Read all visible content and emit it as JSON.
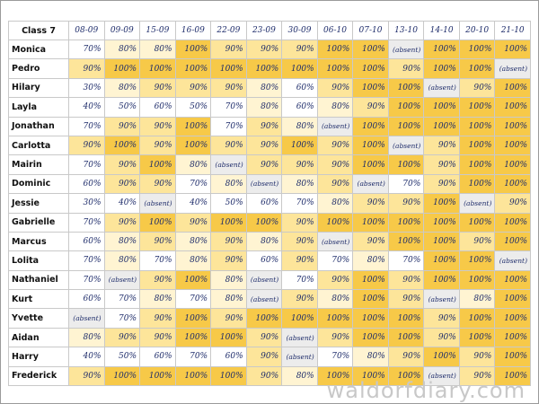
{
  "table": {
    "header": [
      "Class 7",
      "08-09",
      "09-09",
      "15-09",
      "16-09",
      "22-09",
      "23-09",
      "30-09",
      "06-10",
      "07-10",
      "13-10",
      "14-10",
      "20-10",
      "21-10"
    ],
    "rows": [
      [
        "Monica",
        "70%",
        "80%",
        "80%",
        "100%",
        "90%",
        "90%",
        "90%",
        "100%",
        "100%",
        "(absent)",
        "100%",
        "100%",
        "100%"
      ],
      [
        "Pedro",
        "90%",
        "100%",
        "100%",
        "100%",
        "100%",
        "100%",
        "100%",
        "100%",
        "100%",
        "90%",
        "100%",
        "100%",
        "(absent)"
      ],
      [
        "Hilary",
        "30%",
        "80%",
        "90%",
        "90%",
        "90%",
        "80%",
        "60%",
        "90%",
        "100%",
        "100%",
        "(absent)",
        "90%",
        "100%"
      ],
      [
        "Layla",
        "40%",
        "50%",
        "60%",
        "50%",
        "70%",
        "80%",
        "60%",
        "80%",
        "90%",
        "100%",
        "100%",
        "100%",
        "100%"
      ],
      [
        "Jonathan",
        "70%",
        "90%",
        "90%",
        "100%",
        "70%",
        "90%",
        "80%",
        "(absent)",
        "100%",
        "100%",
        "100%",
        "100%",
        "100%"
      ],
      [
        "Carlotta",
        "90%",
        "100%",
        "90%",
        "100%",
        "90%",
        "90%",
        "100%",
        "90%",
        "100%",
        "(absent)",
        "90%",
        "100%",
        "100%"
      ],
      [
        "Mairin",
        "70%",
        "90%",
        "100%",
        "80%",
        "(absent)",
        "90%",
        "90%",
        "90%",
        "100%",
        "100%",
        "90%",
        "100%",
        "100%"
      ],
      [
        "Dominic",
        "60%",
        "90%",
        "90%",
        "70%",
        "80%",
        "(absent)",
        "80%",
        "90%",
        "(absent)",
        "70%",
        "90%",
        "100%",
        "100%"
      ],
      [
        "Jessie",
        "30%",
        "40%",
        "(absent)",
        "40%",
        "50%",
        "60%",
        "70%",
        "80%",
        "90%",
        "90%",
        "100%",
        "(absent)",
        "90%"
      ],
      [
        "Gabrielle",
        "70%",
        "90%",
        "100%",
        "90%",
        "100%",
        "100%",
        "90%",
        "100%",
        "100%",
        "100%",
        "100%",
        "100%",
        "100%"
      ],
      [
        "Marcus",
        "60%",
        "80%",
        "90%",
        "80%",
        "90%",
        "80%",
        "90%",
        "(absent)",
        "90%",
        "100%",
        "100%",
        "90%",
        "100%"
      ],
      [
        "Lolita",
        "70%",
        "80%",
        "70%",
        "80%",
        "90%",
        "60%",
        "90%",
        "70%",
        "80%",
        "70%",
        "100%",
        "100%",
        "(absent)"
      ],
      [
        "Nathaniel",
        "70%",
        "(absent)",
        "90%",
        "100%",
        "80%",
        "(absent)",
        "70%",
        "90%",
        "100%",
        "90%",
        "100%",
        "100%",
        "100%"
      ],
      [
        "Kurt",
        "60%",
        "70%",
        "80%",
        "70%",
        "80%",
        "(absent)",
        "90%",
        "80%",
        "100%",
        "90%",
        "(absent)",
        "80%",
        "100%"
      ],
      [
        "Yvette",
        "(absent)",
        "70%",
        "90%",
        "100%",
        "90%",
        "100%",
        "100%",
        "100%",
        "100%",
        "100%",
        "90%",
        "100%",
        "100%"
      ],
      [
        "Aidan",
        "80%",
        "90%",
        "90%",
        "100%",
        "100%",
        "90%",
        "(absent)",
        "90%",
        "100%",
        "100%",
        "90%",
        "100%",
        "100%"
      ],
      [
        "Harry",
        "40%",
        "50%",
        "60%",
        "70%",
        "60%",
        "90%",
        "(absent)",
        "70%",
        "80%",
        "90%",
        "100%",
        "90%",
        "100%"
      ],
      [
        "Frederick",
        "90%",
        "100%",
        "100%",
        "100%",
        "100%",
        "90%",
        "80%",
        "100%",
        "100%",
        "100%",
        "(absent)",
        "90%",
        "100%"
      ]
    ]
  },
  "watermark": "waldorfdiary.com"
}
